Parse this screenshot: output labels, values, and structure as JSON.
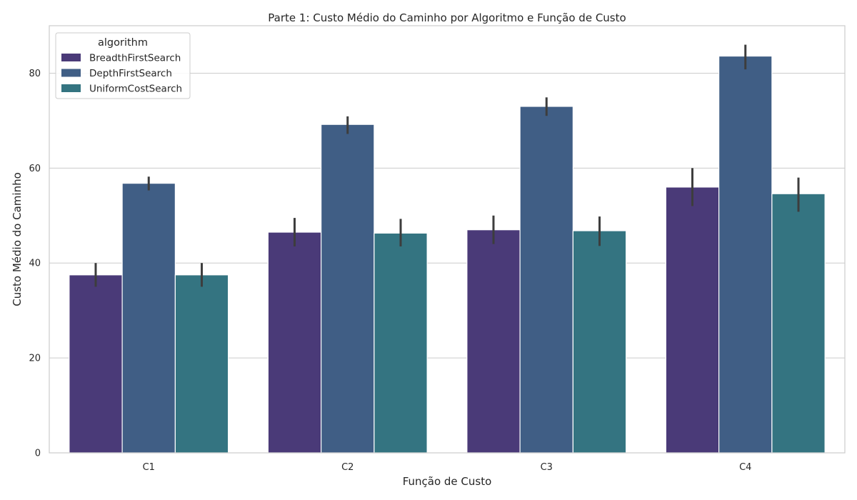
{
  "chart_data": {
    "type": "bar",
    "title": "Parte 1: Custo Médio do Caminho por Algoritmo e Função de Custo",
    "xlabel": "Função de Custo",
    "ylabel": "Custo Médio do Caminho",
    "categories": [
      "C1",
      "C2",
      "C3",
      "C4"
    ],
    "ylim": [
      0,
      90
    ],
    "yticks": [
      0,
      20,
      40,
      60,
      80
    ],
    "grid": true,
    "legend": {
      "title": "algorithm",
      "position": "top-left"
    },
    "series": [
      {
        "name": "BreadthFirstSearch",
        "color": "#4a3a78",
        "values": [
          37.5,
          46.5,
          47.0,
          56.0
        ],
        "error_low": [
          35.0,
          43.5,
          44.0,
          52.0
        ],
        "error_high": [
          40.0,
          49.5,
          50.0,
          60.0
        ]
      },
      {
        "name": "DepthFirstSearch",
        "color": "#405e85",
        "values": [
          56.8,
          69.2,
          73.0,
          83.6
        ],
        "error_low": [
          55.3,
          67.2,
          71.0,
          80.8
        ],
        "error_high": [
          58.2,
          70.9,
          74.9,
          86.0
        ]
      },
      {
        "name": "UniformCostSearch",
        "color": "#347481",
        "values": [
          37.5,
          46.3,
          46.8,
          54.6
        ],
        "error_low": [
          35.0,
          43.5,
          43.6,
          50.8
        ],
        "error_high": [
          40.0,
          49.3,
          49.8,
          58.0
        ]
      }
    ]
  }
}
